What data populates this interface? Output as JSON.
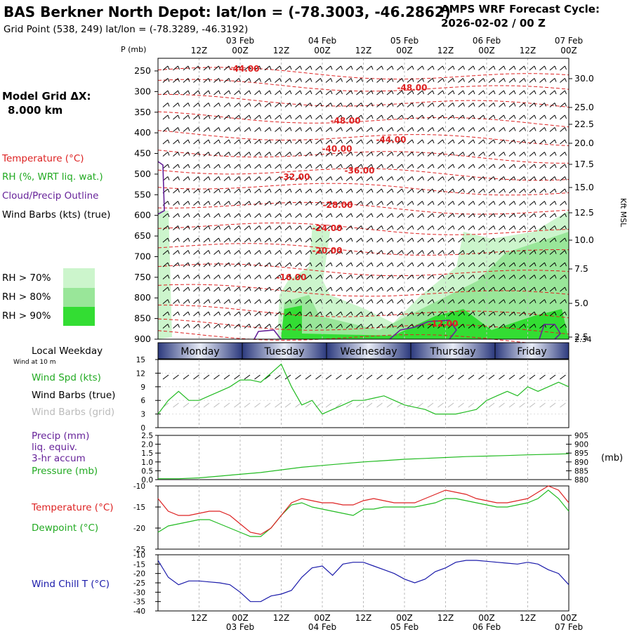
{
  "header": {
    "title": "BAS Berkner North Depot:  lat/lon = (-78.3003, -46.2862)",
    "subtitle": "Grid Point (538, 249) lat/lon = (-78.3289, -46.3192)",
    "cycle_line1": "AMPS WRF Forecast Cycle:",
    "cycle_line2": "2026-02-02 / 00  Z"
  },
  "model_grid": {
    "label": "Model Grid ΔX:",
    "value": "8.000 km"
  },
  "colors": {
    "temperature": "#dd2222",
    "rh": "#22aa22",
    "cloud": "#662299",
    "wind": "#000000",
    "grid_wind": "#bbbbbb",
    "dewpoint": "#22bb22",
    "wind_chill": "#1a1aaa",
    "rh70": "#ccf5cc",
    "rh80": "#99e699",
    "rh90": "#33dd33",
    "day_band": "#3a4a8a"
  },
  "time_axis": {
    "top_labels": [
      "12Z",
      "00Z",
      "12Z",
      "00Z",
      "12Z",
      "00Z",
      "12Z",
      "00Z",
      "12Z",
      "00Z"
    ],
    "date_labels": [
      "03 Feb",
      "04 Feb",
      "05 Feb",
      "06 Feb",
      "07 Feb"
    ]
  },
  "weekday_label": "Local Weekday",
  "weekdays": [
    "Monday",
    "Tuesday",
    "Wednesday",
    "Thursday",
    "Friday"
  ],
  "cross_section": {
    "ylabel": "P (mb)",
    "pressure_ticks": [
      "250",
      "300",
      "350",
      "400",
      "450",
      "500",
      "550",
      "600",
      "650",
      "700",
      "750",
      "800",
      "850",
      "900"
    ],
    "right_ticks": [
      "30.0",
      "25.0",
      "22.5",
      "20.0",
      "17.5",
      "15.0",
      "12.5",
      "10.0",
      "7.5",
      "5.0",
      "2.5"
    ],
    "right_extra": "2.34",
    "right_label": "Kft MSL",
    "legend": {
      "temperature": "Temperature (°C)",
      "rh": "RH (%, WRT liq. wat.)",
      "cloud": "Cloud/Precip Outline",
      "wind": "Wind Barbs (kts) (true)"
    },
    "rh_legend": [
      "RH > 70%",
      "RH > 80%",
      "RH > 90%"
    ],
    "contour_labels": [
      "-44.00",
      "-48.00",
      "-48.00",
      "-44.00",
      "-40.00",
      "-36.00",
      "-32.00",
      "-28.00",
      "-24.00",
      "-20.00",
      "-16.00",
      "-12.00"
    ]
  },
  "wind_panel": {
    "sublabel": "Wind at 10 m",
    "ylabels": [
      "15",
      "12",
      "9",
      "6",
      "3",
      "0"
    ],
    "legend_speed": "Wind Spd (kts)",
    "legend_barbs": "Wind Barbs (true)",
    "legend_grid": "Wind Barbs (grid)"
  },
  "precip_panel": {
    "left_ticks": [
      "2.5",
      "2.0",
      "1.5",
      "1.0",
      "0.5",
      "0.0"
    ],
    "right_ticks": [
      "905",
      "900",
      "895",
      "890",
      "885",
      "880"
    ],
    "right_unit": "(mb)",
    "legend_precip": "Precip (mm)",
    "legend_liq": "liq. equiv.",
    "legend_accum": "3-hr accum",
    "legend_pressure": "Pressure (mb)"
  },
  "temp_panel": {
    "ticks": [
      "-10",
      "-15",
      "-20",
      "-25"
    ],
    "legend_temp": "Temperature (°C)",
    "legend_dew": "Dewpoint (°C)"
  },
  "chill_panel": {
    "ticks": [
      "-10",
      "-15",
      "-20",
      "-25",
      "-30",
      "-35",
      "-40"
    ],
    "legend": "Wind Chill T (°C)"
  },
  "chart_data": [
    {
      "type": "line",
      "title": "Wind Spd (kts)",
      "x_hours": [
        0,
        3,
        6,
        9,
        12,
        15,
        18,
        21,
        24,
        27,
        30,
        33,
        36,
        39,
        42,
        45,
        48,
        51,
        54,
        57,
        60,
        63,
        66,
        69,
        72,
        75,
        78,
        81,
        84,
        87,
        90,
        93,
        96,
        99,
        102,
        105,
        108,
        111,
        114,
        117,
        120
      ],
      "values": [
        3,
        6,
        8,
        6,
        6,
        7,
        8,
        9,
        10.5,
        10.5,
        10,
        12,
        14,
        9,
        5,
        6,
        3,
        4,
        5,
        6,
        6,
        6.5,
        7,
        6,
        5,
        4.5,
        4,
        3,
        3,
        3,
        3.5,
        4,
        6,
        7,
        8,
        7,
        9,
        8,
        9,
        10,
        9
      ],
      "ylim": [
        0,
        15
      ]
    },
    {
      "type": "line",
      "title": "Pressure (mb)",
      "x_hours": [
        0,
        6,
        12,
        18,
        24,
        30,
        36,
        42,
        48,
        54,
        60,
        66,
        72,
        78,
        84,
        90,
        96,
        102,
        108,
        114,
        120
      ],
      "values": [
        880.5,
        880.5,
        881,
        882,
        883,
        884,
        885.5,
        887,
        888,
        889,
        890,
        890.7,
        891.5,
        892,
        892.5,
        893,
        893.3,
        893.6,
        894,
        894.3,
        894.6
      ],
      "ylim": [
        880,
        905
      ]
    },
    {
      "type": "line",
      "title": "Temperature (°C)",
      "x_hours": [
        0,
        3,
        6,
        9,
        12,
        15,
        18,
        21,
        24,
        27,
        30,
        33,
        36,
        39,
        42,
        45,
        48,
        51,
        54,
        57,
        60,
        63,
        66,
        69,
        72,
        75,
        78,
        81,
        84,
        87,
        90,
        93,
        96,
        99,
        102,
        105,
        108,
        111,
        114,
        117,
        120
      ],
      "series": [
        {
          "name": "Temperature (°C)",
          "values": [
            -13,
            -16,
            -17,
            -17,
            -16.5,
            -16,
            -16,
            -17,
            -19,
            -21,
            -21.5,
            -20,
            -17,
            -14,
            -13,
            -13.5,
            -14,
            -14,
            -14.5,
            -14.5,
            -13.5,
            -13,
            -13.5,
            -14,
            -14,
            -14,
            -13,
            -12,
            -11,
            -11.5,
            -12,
            -13,
            -13.5,
            -14,
            -14,
            -13.5,
            -13,
            -11.5,
            -10,
            -11,
            -14
          ]
        },
        {
          "name": "Dewpoint (°C)",
          "values": [
            -21,
            -19.5,
            -19,
            -18.5,
            -18,
            -18,
            -19,
            -20,
            -21,
            -22,
            -22,
            -20,
            -17,
            -14.5,
            -14,
            -15,
            -15.5,
            -16,
            -16.5,
            -17,
            -15.5,
            -15.5,
            -15,
            -15,
            -15,
            -15,
            -14.5,
            -14,
            -13,
            -13,
            -13.5,
            -14,
            -14.5,
            -15,
            -15,
            -14.5,
            -14,
            -13,
            -11,
            -13,
            -16
          ]
        }
      ],
      "ylim": [
        -25,
        -10
      ]
    },
    {
      "type": "line",
      "title": "Wind Chill T (°C)",
      "x_hours": [
        0,
        3,
        6,
        9,
        12,
        15,
        18,
        21,
        24,
        27,
        30,
        33,
        36,
        39,
        42,
        45,
        48,
        51,
        54,
        57,
        60,
        63,
        66,
        69,
        72,
        75,
        78,
        81,
        84,
        87,
        90,
        93,
        96,
        99,
        102,
        105,
        108,
        111,
        114,
        117,
        120
      ],
      "values": [
        -13,
        -22,
        -26,
        -24,
        -24,
        -24.5,
        -25,
        -26,
        -30,
        -35,
        -35,
        -32,
        -31,
        -29,
        -22,
        -17,
        -16,
        -21,
        -15,
        -14,
        -14,
        -16,
        -18,
        -20,
        -23,
        -25,
        -23,
        -19,
        -17,
        -14,
        -13,
        -13,
        -13.5,
        -14,
        -14.5,
        -15,
        -14,
        -15,
        -18,
        -20,
        -26
      ],
      "ylim": [
        -40,
        -10
      ]
    }
  ]
}
